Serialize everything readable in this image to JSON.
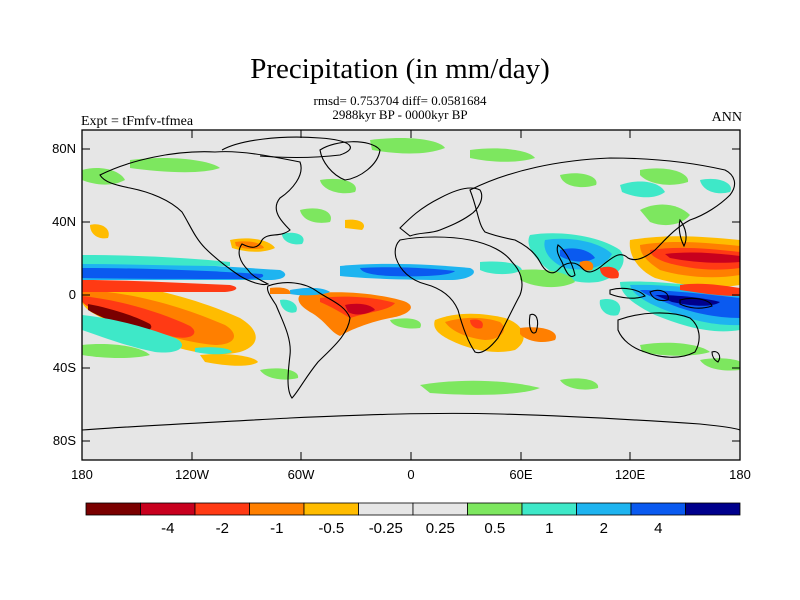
{
  "title": "Precipitation (in mm/day)",
  "stats_line": "rmsd= 0.753704 diff= 0.0581684",
  "period_line": "2988kyr BP - 0000kyr BP",
  "experiment": "Expt = tFmfv-tfmea",
  "season": "ANN",
  "y_ticks": [
    "80N",
    "40N",
    "0",
    "40S",
    "80S"
  ],
  "x_ticks": [
    "180",
    "120W",
    "60W",
    "0",
    "60E",
    "120E",
    "180"
  ],
  "colorbar": {
    "colors": [
      "#7a0000",
      "#c8001e",
      "#ff3a14",
      "#ff7f00",
      "#ffbc00",
      "#e6e6e6",
      "#e6e6e6",
      "#7de75f",
      "#3ee8c8",
      "#1eb4f0",
      "#0a5af0",
      "#00008c"
    ],
    "labels": [
      "-4",
      "-2",
      "-1",
      "-0.5",
      "-0.25",
      "0.25",
      "0.5",
      "1",
      "2",
      "4"
    ]
  },
  "colors": {
    "background": "#e6e6e6",
    "coast": "#000000"
  }
}
